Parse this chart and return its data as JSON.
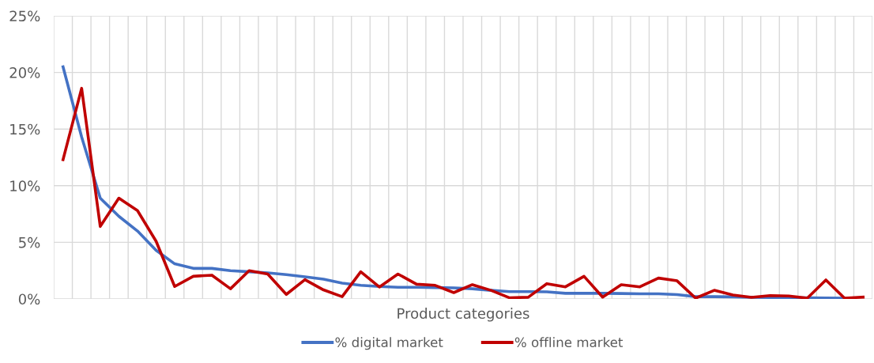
{
  "chart_data": {
    "type": "line",
    "xlabel": "Product categories",
    "categories": [
      null,
      null,
      null,
      null,
      null,
      null,
      null,
      null,
      null,
      null,
      null,
      null,
      null,
      null,
      null,
      null,
      null,
      null,
      null,
      null,
      null,
      null,
      null,
      null,
      null,
      null,
      null,
      null,
      null,
      null,
      null,
      null,
      null,
      null,
      null,
      null,
      null,
      null,
      null,
      null,
      null,
      null,
      null,
      null
    ],
    "series": [
      {
        "name": "% digital market",
        "color": "#4472c4",
        "values": [
          20.5,
          14.3,
          8.9,
          7.3,
          6.0,
          4.3,
          3.1,
          2.7,
          2.7,
          2.5,
          2.4,
          2.3,
          2.15,
          1.95,
          1.75,
          1.4,
          1.2,
          1.1,
          1.03,
          1.03,
          1.0,
          0.98,
          0.9,
          0.76,
          0.65,
          0.65,
          0.63,
          0.5,
          0.5,
          0.5,
          0.48,
          0.45,
          0.45,
          0.38,
          0.2,
          0.2,
          0.18,
          0.15,
          0.13,
          0.12,
          0.1,
          0.08,
          0.07,
          null
        ]
      },
      {
        "name": "% offline market",
        "color": "#c00000",
        "values": [
          12.3,
          18.6,
          6.4,
          8.9,
          7.8,
          5.1,
          1.1,
          2.0,
          2.1,
          0.9,
          2.5,
          2.2,
          0.4,
          1.7,
          0.8,
          0.2,
          2.4,
          1.05,
          2.2,
          1.3,
          1.2,
          0.56,
          1.26,
          0.76,
          0.1,
          0.15,
          1.35,
          1.07,
          2.0,
          0.16,
          1.26,
          1.07,
          1.84,
          1.6,
          0.07,
          0.76,
          0.35,
          0.14,
          0.3,
          0.26,
          0.07,
          1.68,
          0.07,
          0.16
        ]
      }
    ],
    "ylim": [
      0,
      25
    ],
    "yticks": [
      {
        "value": 0,
        "label": "0%"
      },
      {
        "value": 5,
        "label": "5%"
      },
      {
        "value": 10,
        "label": "10%"
      },
      {
        "value": 15,
        "label": "15%"
      },
      {
        "value": 20,
        "label": "20%"
      },
      {
        "value": 25,
        "label": "25%"
      }
    ],
    "grid": true,
    "legend": "bottom",
    "tick_labels": "y",
    "marker": "none",
    "line_style": "solid"
  }
}
